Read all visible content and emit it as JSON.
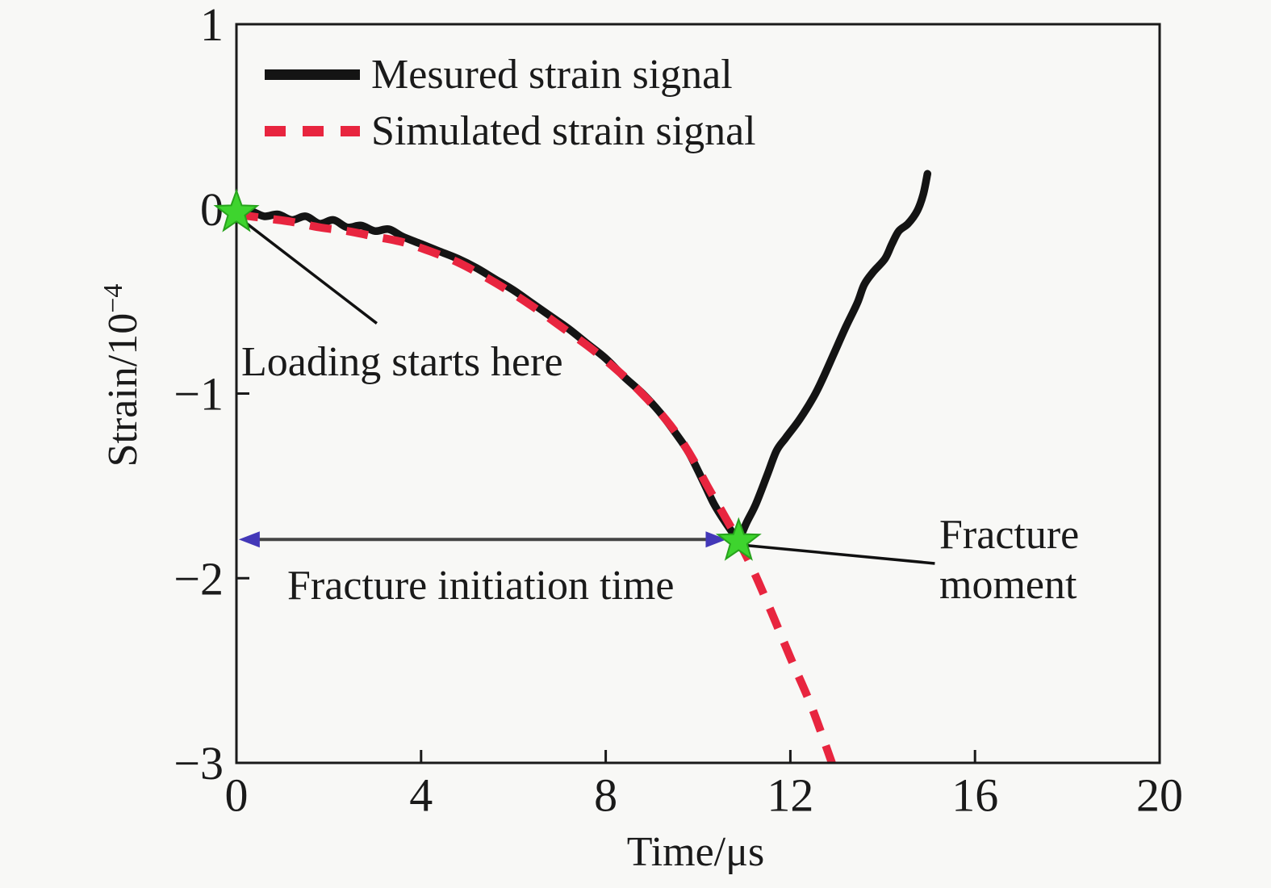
{
  "colors": {
    "background": "#f8f8f6",
    "text": "#1a1a1a",
    "axis": "#1a1a1a",
    "measured": "#141414",
    "simulated": "#e8253f",
    "marker_fill": "#3ed42e",
    "marker_edge": "#27a31c",
    "arrow_line": "#454545",
    "arrow_head": "#4338b8",
    "leader_line": "#111111"
  },
  "legend": {
    "items": [
      {
        "label": "Mesured strain signal",
        "series": "measured",
        "style": "solid"
      },
      {
        "label": "Simulated strain signal",
        "series": "simulated",
        "style": "dashed"
      }
    ]
  },
  "axes": {
    "xlabel": "Time/μs",
    "ylabel_base": "Strain/10",
    "ylabel_exp": "−4",
    "x_tick_labels": [
      "0",
      "4",
      "8",
      "12",
      "16",
      "20"
    ],
    "y_tick_labels": [
      "1",
      "0",
      "−1",
      "−2",
      "−3"
    ]
  },
  "annotations": {
    "loading": "Loading starts here",
    "fracture_initiation": "Fracture initiation time",
    "fracture_moment_line1": "Fracture",
    "fracture_moment_line2": "moment"
  },
  "chart_data": {
    "type": "line",
    "title": "",
    "xlabel": "Time/μs",
    "ylabel": "Strain/10^−4",
    "xlim": [
      0,
      20
    ],
    "ylim": [
      -3,
      1
    ],
    "x_tick_values": [
      0,
      4,
      8,
      12,
      16,
      20
    ],
    "y_tick_values": [
      1,
      0,
      -1,
      -2,
      -3
    ],
    "grid": false,
    "legend_position": "top-left",
    "series": [
      {
        "name": "Mesured strain signal",
        "style": "solid",
        "width": 9.5,
        "points": [
          [
            0,
            0
          ],
          [
            0.3,
            -0.01
          ],
          [
            0.6,
            -0.04
          ],
          [
            0.9,
            -0.03
          ],
          [
            1.2,
            -0.06
          ],
          [
            1.5,
            -0.04
          ],
          [
            1.8,
            -0.08
          ],
          [
            2.1,
            -0.06
          ],
          [
            2.4,
            -0.1
          ],
          [
            2.7,
            -0.09
          ],
          [
            3.0,
            -0.12
          ],
          [
            3.3,
            -0.11
          ],
          [
            3.6,
            -0.15
          ],
          [
            4.0,
            -0.19
          ],
          [
            4.4,
            -0.23
          ],
          [
            4.8,
            -0.27
          ],
          [
            5.2,
            -0.32
          ],
          [
            5.6,
            -0.38
          ],
          [
            6.0,
            -0.44
          ],
          [
            6.4,
            -0.51
          ],
          [
            6.8,
            -0.58
          ],
          [
            7.2,
            -0.65
          ],
          [
            7.6,
            -0.73
          ],
          [
            8.0,
            -0.81
          ],
          [
            8.4,
            -0.91
          ],
          [
            8.8,
            -1.0
          ],
          [
            9.2,
            -1.11
          ],
          [
            9.5,
            -1.21
          ],
          [
            9.8,
            -1.32
          ],
          [
            10.1,
            -1.47
          ],
          [
            10.35,
            -1.6
          ],
          [
            10.6,
            -1.7
          ],
          [
            10.88,
            -1.8
          ],
          [
            11.05,
            -1.7
          ],
          [
            11.25,
            -1.6
          ],
          [
            11.5,
            -1.44
          ],
          [
            11.7,
            -1.31
          ],
          [
            11.9,
            -1.24
          ],
          [
            12.2,
            -1.14
          ],
          [
            12.5,
            -1.02
          ],
          [
            12.7,
            -0.92
          ],
          [
            12.95,
            -0.78
          ],
          [
            13.2,
            -0.64
          ],
          [
            13.45,
            -0.51
          ],
          [
            13.6,
            -0.41
          ],
          [
            13.8,
            -0.34
          ],
          [
            14.05,
            -0.27
          ],
          [
            14.2,
            -0.19
          ],
          [
            14.35,
            -0.12
          ],
          [
            14.55,
            -0.08
          ],
          [
            14.75,
            -0.01
          ],
          [
            14.88,
            0.08
          ],
          [
            14.97,
            0.19
          ]
        ]
      },
      {
        "name": "Simulated strain signal",
        "style": "dashed",
        "width": 10,
        "dash": [
          27,
          19
        ],
        "points": [
          [
            0,
            -0.03
          ],
          [
            0.6,
            -0.05
          ],
          [
            1.2,
            -0.07
          ],
          [
            1.8,
            -0.1
          ],
          [
            2.4,
            -0.12
          ],
          [
            3.0,
            -0.15
          ],
          [
            3.6,
            -0.18
          ],
          [
            4.2,
            -0.23
          ],
          [
            4.8,
            -0.29
          ],
          [
            5.4,
            -0.37
          ],
          [
            6.0,
            -0.46
          ],
          [
            6.6,
            -0.56
          ],
          [
            7.1,
            -0.65
          ],
          [
            7.6,
            -0.74
          ],
          [
            8.0,
            -0.82
          ],
          [
            8.5,
            -0.93
          ],
          [
            8.9,
            -1.03
          ],
          [
            9.3,
            -1.14
          ],
          [
            9.6,
            -1.24
          ],
          [
            9.9,
            -1.36
          ],
          [
            10.2,
            -1.5
          ],
          [
            10.5,
            -1.63
          ],
          [
            10.88,
            -1.8
          ],
          [
            11.2,
            -1.96
          ],
          [
            11.6,
            -2.19
          ],
          [
            12.0,
            -2.43
          ],
          [
            12.45,
            -2.69
          ],
          [
            12.9,
            -3.0
          ]
        ]
      }
    ],
    "markers": [
      {
        "shape": "star",
        "x": 0,
        "y": -0.02,
        "meaning": "loading starts here"
      },
      {
        "shape": "star",
        "x": 10.88,
        "y": -1.8,
        "meaning": "fracture moment"
      }
    ],
    "arrows": {
      "fracture_initiation": {
        "type": "double",
        "y": -1.79,
        "x1": 0.05,
        "x2": 10.62
      },
      "loading_leader": {
        "type": "plain",
        "from": [
          0.07,
          -0.05
        ],
        "to": [
          3.04,
          -0.62
        ]
      },
      "moment_leader": {
        "type": "plain",
        "from": [
          10.95,
          -1.82
        ],
        "to": [
          15.13,
          -1.92
        ]
      }
    }
  }
}
